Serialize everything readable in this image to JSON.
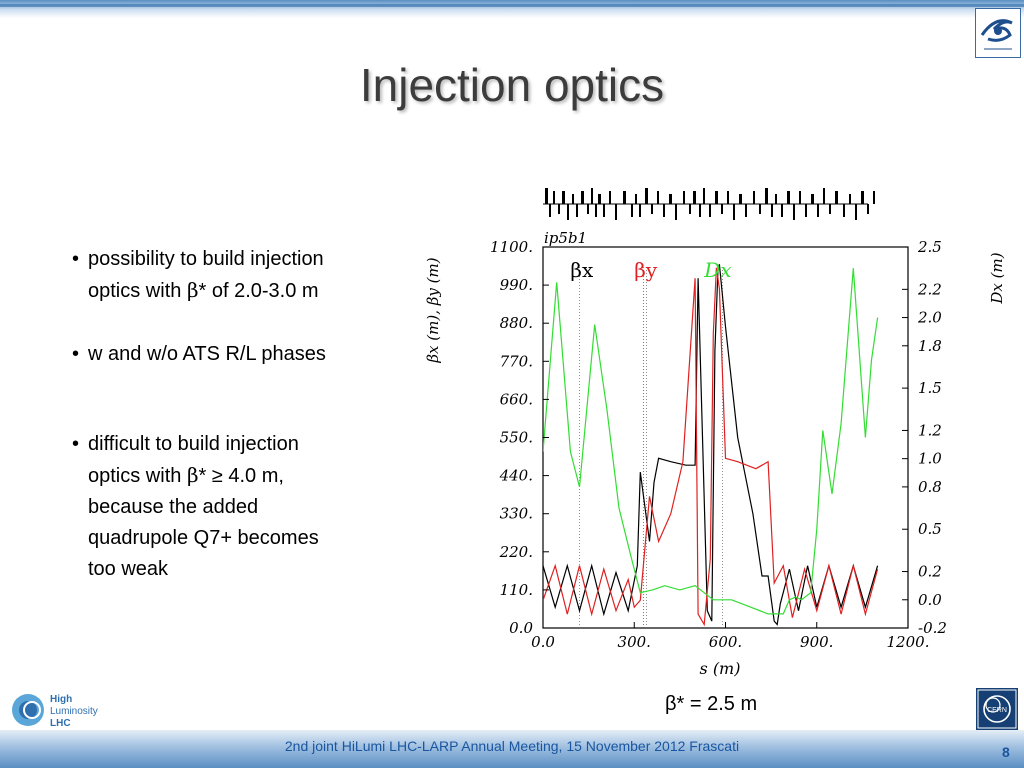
{
  "slide": {
    "title": "Injection optics",
    "bullets": [
      {
        "line1": "possibility to build  injection",
        "line2_parts": [
          "optics with ",
          "β",
          "* of 2.0-3.0 m"
        ]
      },
      {
        "line1": "w and w/o ATS R/L phases"
      },
      {
        "line1": "difficult to build injection",
        "line2_parts": [
          "optics with ",
          "β",
          "* ≥ 4.0 m,"
        ],
        "line3": "because the added",
        "line4": "quadrupole Q7+  becomes",
        "line5": "too weak"
      }
    ],
    "caption": "β* = 2.5 m",
    "footer": "2nd joint HiLumi LHC-LARP Annual Meeting, 15 November 2012 Frascati",
    "page_number": "8",
    "logos": {
      "top_right": "ligne-icon",
      "bottom_left_text": [
        "High",
        "Luminosity",
        "LHC"
      ],
      "bottom_right": "cern-logo-icon",
      "cern_label": "CERN"
    }
  },
  "chart_data": {
    "type": "line",
    "title": "ip5b1",
    "xlabel": "s (m)",
    "ylabel_left": "βx (m), βy (m)",
    "ylabel_right": "Dx (m)",
    "xlim": [
      0,
      1200
    ],
    "ylim_left": [
      0,
      1100
    ],
    "ylim_right": [
      -0.2,
      2.5
    ],
    "x_ticks": [
      "0.0",
      "300.",
      "600.",
      "900.",
      "1200."
    ],
    "y_left_ticks": [
      "0.0",
      "110.",
      "220.",
      "330.",
      "440.",
      "550.",
      "660.",
      "770.",
      "880.",
      "990.",
      "1100."
    ],
    "y_right_ticks": [
      "-0.2",
      "0.0",
      "0.2",
      "0.5",
      "0.8",
      "1.0",
      "1.2",
      "1.5",
      "1.8",
      "2.0",
      "2.2",
      "2.5"
    ],
    "series": [
      {
        "name": "βx",
        "axis": "left",
        "color": "#000000",
        "x": [
          0,
          40,
          80,
          120,
          160,
          200,
          240,
          280,
          310,
          320,
          350,
          365,
          380,
          420,
          470,
          500,
          510,
          540,
          555,
          565,
          575,
          580,
          600,
          640,
          690,
          720,
          740,
          760,
          770,
          780,
          810,
          840,
          870,
          900,
          940,
          980,
          1020,
          1060,
          1100
        ],
        "y": [
          180,
          60,
          180,
          50,
          180,
          40,
          160,
          50,
          180,
          450,
          250,
          420,
          490,
          480,
          470,
          470,
          1010,
          50,
          20,
          800,
          1030,
          1050,
          870,
          550,
          330,
          150,
          150,
          20,
          10,
          70,
          170,
          50,
          180,
          60,
          180,
          60,
          180,
          60,
          180
        ]
      },
      {
        "name": "βy",
        "axis": "left",
        "color": "#e02020",
        "x": [
          0,
          40,
          80,
          120,
          160,
          200,
          240,
          280,
          300,
          320,
          350,
          380,
          420,
          460,
          500,
          510,
          530,
          550,
          560,
          570,
          580,
          600,
          640,
          700,
          740,
          760,
          790,
          820,
          860,
          900,
          940,
          980,
          1020,
          1060,
          1100
        ],
        "y": [
          80,
          180,
          40,
          180,
          40,
          170,
          50,
          140,
          60,
          80,
          380,
          250,
          330,
          480,
          1010,
          40,
          10,
          200,
          850,
          1040,
          980,
          490,
          480,
          460,
          480,
          130,
          180,
          30,
          170,
          50,
          180,
          40,
          180,
          40,
          170
        ]
      },
      {
        "name": "Dx",
        "axis": "right",
        "color": "#33dd33",
        "x": [
          0,
          45,
          90,
          120,
          170,
          210,
          250,
          290,
          320,
          360,
          400,
          450,
          500,
          560,
          620,
          680,
          740,
          790,
          810,
          830,
          850,
          880,
          900,
          920,
          950,
          980,
          1020,
          1060,
          1080,
          1100
        ],
        "y": [
          1.05,
          2.25,
          1.05,
          0.8,
          1.95,
          1.35,
          0.65,
          0.3,
          0.05,
          0.07,
          0.1,
          0.07,
          0.1,
          0.0,
          0.0,
          -0.05,
          -0.1,
          -0.1,
          0.0,
          0.02,
          0.0,
          0.05,
          0.5,
          1.2,
          0.75,
          1.25,
          2.35,
          1.15,
          1.7,
          2.0
        ]
      }
    ]
  }
}
